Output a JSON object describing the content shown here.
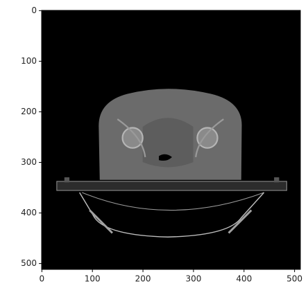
{
  "chart_data": {
    "type": "image",
    "xlim": [
      -0.5,
      511.5
    ],
    "ylim": [
      511.5,
      -0.5
    ],
    "xticks": [
      0,
      100,
      200,
      300,
      400,
      500
    ],
    "yticks": [
      0,
      100,
      200,
      300,
      400,
      500
    ]
  }
}
